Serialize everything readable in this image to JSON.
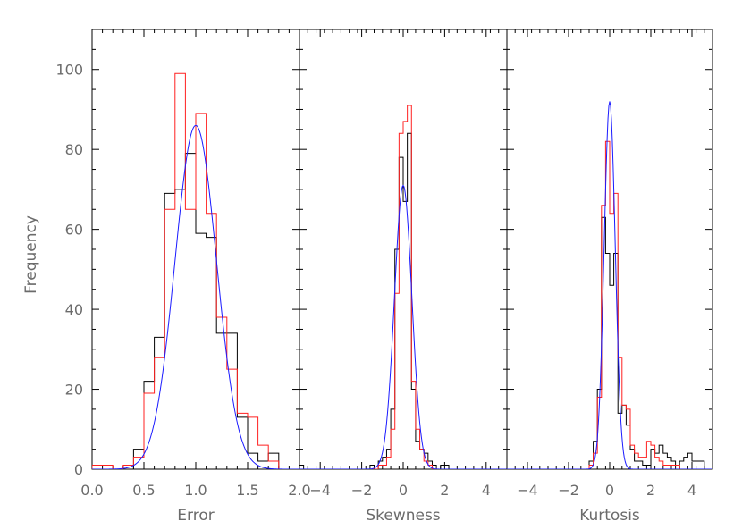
{
  "chart_data": {
    "type": "histogram",
    "ylabel": "Frequency",
    "ylim": [
      0,
      110
    ],
    "yticks": [
      0,
      20,
      40,
      60,
      80,
      100
    ],
    "colors": {
      "black": "#000000",
      "red": "#ff2020",
      "blue": "#1a1aff"
    },
    "panels": [
      {
        "xlabel": "Error",
        "xlim": [
          0.0,
          2.0
        ],
        "xticks": [
          "0.0",
          "0.5",
          "1.0",
          "1.5",
          "2.0"
        ],
        "xtick_values": [
          0.0,
          0.5,
          1.0,
          1.5,
          2.0
        ],
        "edges": [
          0.0,
          0.1,
          0.2,
          0.3,
          0.4,
          0.5,
          0.6,
          0.7,
          0.8,
          0.9,
          1.0,
          1.1,
          1.2,
          1.3,
          1.4,
          1.5,
          1.6,
          1.7,
          1.8
        ],
        "black": [
          0,
          0,
          0,
          0,
          5,
          22,
          33,
          69,
          70,
          79,
          59,
          58,
          34,
          34,
          13,
          4,
          2,
          4
        ],
        "red": [
          1,
          1,
          0,
          1,
          3,
          19,
          28,
          65,
          99,
          65,
          89,
          64,
          38,
          25,
          14,
          13,
          6,
          2
        ],
        "fit": {
          "mu": 1.0,
          "sigma": 0.2,
          "amp": 86
        }
      },
      {
        "xlabel": "Skewness",
        "xlim": [
          -5,
          5
        ],
        "xticks": [
          "−4",
          "−2",
          "0",
          "2",
          "4"
        ],
        "xtick_values": [
          -4,
          -2,
          0,
          2,
          4
        ],
        "edges": [
          -5.0,
          -4.8,
          -4.6,
          -4.4,
          -4.2,
          -4.0,
          -3.8,
          -3.6,
          -3.4,
          -3.2,
          -3.0,
          -2.8,
          -2.6,
          -2.4,
          -2.2,
          -2.0,
          -1.8,
          -1.6,
          -1.4,
          -1.2,
          -1.0,
          -0.8,
          -0.6,
          -0.4,
          -0.2,
          0.0,
          0.2,
          0.4,
          0.6,
          0.8,
          1.0,
          1.2,
          1.4,
          1.6,
          1.8,
          2.0,
          2.2,
          2.4,
          2.6,
          2.8,
          3.0,
          3.2,
          3.4,
          3.6,
          3.8,
          4.0,
          4.2,
          4.4,
          4.6,
          4.8
        ],
        "black": [
          1,
          0,
          0,
          0,
          0,
          0,
          0,
          0,
          0,
          0,
          0,
          0,
          0,
          0,
          0,
          0,
          0,
          1,
          0,
          2,
          3,
          5,
          15,
          55,
          78,
          67,
          84,
          20,
          7,
          5,
          4,
          2,
          1,
          0,
          1,
          1,
          0,
          0,
          0,
          0,
          0,
          0,
          0,
          0,
          0,
          0,
          0,
          0,
          0
        ],
        "red": [
          0,
          0,
          0,
          0,
          0,
          0,
          0,
          0,
          0,
          0,
          0,
          0,
          0,
          0,
          0,
          0,
          0,
          0,
          0,
          1,
          1,
          3,
          10,
          44,
          84,
          87,
          91,
          22,
          10,
          5,
          2,
          1,
          0,
          0,
          0,
          0,
          0,
          0,
          0,
          0,
          0,
          0,
          0,
          0,
          0,
          0,
          0,
          0,
          0
        ],
        "fit": {
          "mu": 0.0,
          "sigma": 0.42,
          "amp": 71
        }
      },
      {
        "xlabel": "Kurtosis",
        "xlim": [
          -5,
          5
        ],
        "xticks": [
          "−4",
          "−2",
          "0",
          "2",
          "4"
        ],
        "xtick_values": [
          -4,
          -2,
          0,
          2,
          4
        ],
        "edges": [
          -5.0,
          -4.8,
          -4.6,
          -4.4,
          -4.2,
          -4.0,
          -3.8,
          -3.6,
          -3.4,
          -3.2,
          -3.0,
          -2.8,
          -2.6,
          -2.4,
          -2.2,
          -2.0,
          -1.8,
          -1.6,
          -1.4,
          -1.2,
          -1.0,
          -0.8,
          -0.6,
          -0.4,
          -0.2,
          0.0,
          0.2,
          0.4,
          0.6,
          0.8,
          1.0,
          1.2,
          1.4,
          1.6,
          1.8,
          2.0,
          2.2,
          2.4,
          2.6,
          2.8,
          3.0,
          3.2,
          3.4,
          3.6,
          3.8,
          4.0,
          4.2,
          4.4,
          4.6,
          4.8
        ],
        "black": [
          0,
          0,
          0,
          0,
          0,
          0,
          0,
          0,
          0,
          0,
          0,
          0,
          0,
          0,
          0,
          0,
          0,
          0,
          0,
          0,
          2,
          7,
          20,
          63,
          54,
          46,
          54,
          14,
          16,
          11,
          5,
          2,
          2,
          1,
          1,
          5,
          4,
          6,
          4,
          3,
          2,
          0,
          2,
          3,
          4,
          2,
          2,
          2,
          0
        ],
        "red": [
          0,
          0,
          0,
          0,
          0,
          0,
          0,
          0,
          0,
          0,
          0,
          0,
          0,
          0,
          0,
          0,
          0,
          0,
          0,
          0,
          1,
          4,
          18,
          66,
          82,
          64,
          69,
          28,
          16,
          15,
          6,
          4,
          3,
          3,
          7,
          6,
          3,
          2,
          1,
          1,
          1,
          1,
          0,
          0,
          0,
          0,
          0,
          0,
          0
        ],
        "fit": {
          "mu": 0.0,
          "sigma": 0.27,
          "amp": 92
        }
      }
    ]
  }
}
